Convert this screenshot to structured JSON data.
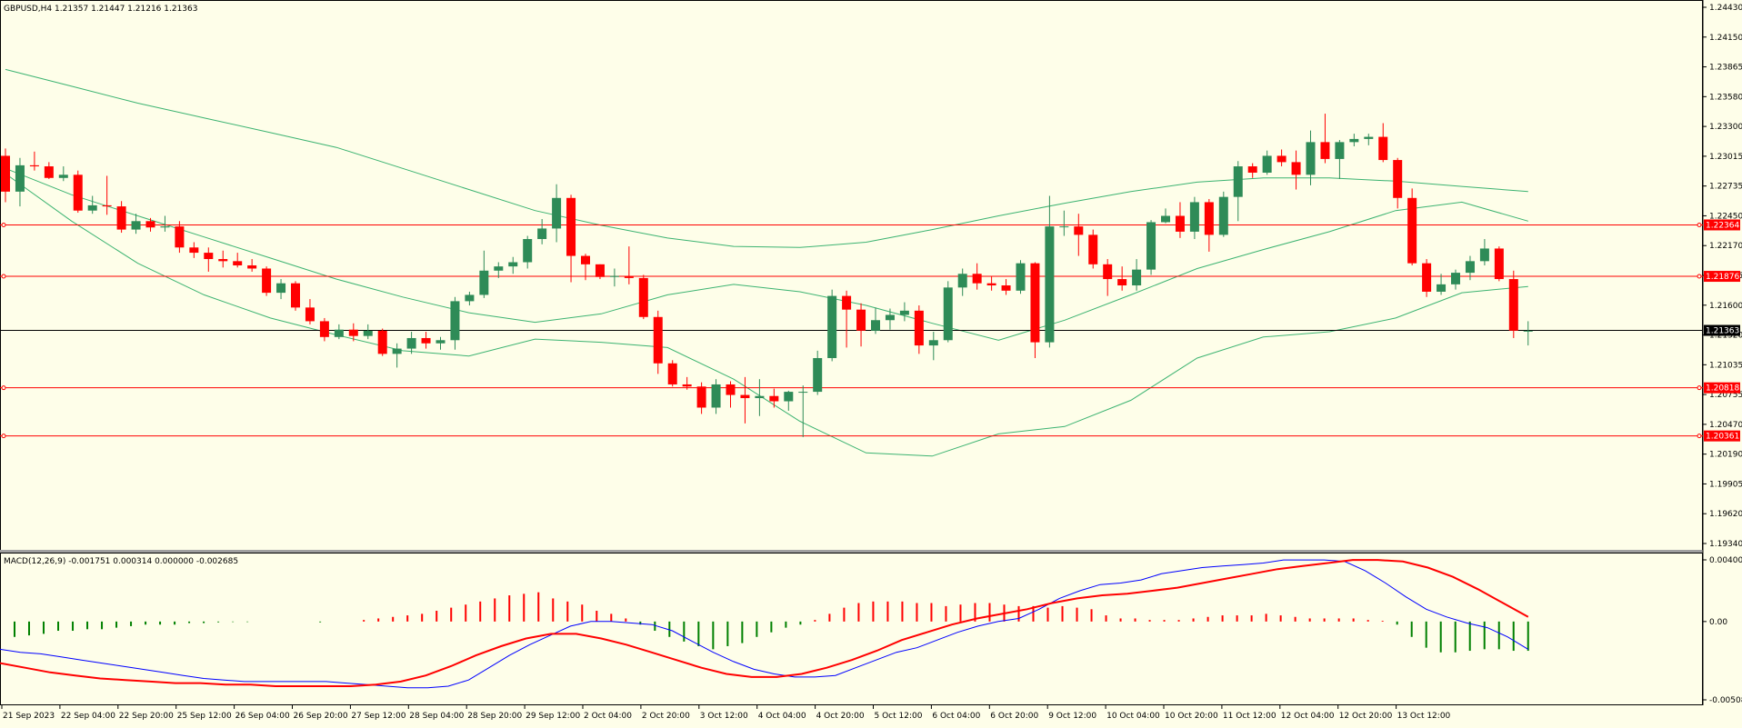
{
  "price_panel": {
    "header": "GBPUSD,H4  1.21357 1.21447 1.21216 1.21363",
    "price_axis_ticks": [
      "1.24430",
      "1.24150",
      "1.23865",
      "1.23580",
      "1.23300",
      "1.23015",
      "1.22735",
      "1.22450",
      "1.22170",
      "1.21885",
      "1.21600",
      "1.21320",
      "1.21035",
      "1.20755",
      "1.20470",
      "1.20190",
      "1.19905",
      "1.19620",
      "1.19340"
    ],
    "horizontal_levels": [
      {
        "price": 1.22364,
        "label": "1.22364",
        "color": "#ff0000"
      },
      {
        "price": 1.21876,
        "label": "1.21876",
        "color": "#ff0000"
      },
      {
        "price": 1.21363,
        "label": "1.21363",
        "color": "#000000"
      },
      {
        "price": 1.20818,
        "label": "1.20818",
        "color": "#ff0000"
      },
      {
        "price": 1.20361,
        "label": "1.20361",
        "color": "#ff0000"
      }
    ],
    "up_color": "#2e8b57",
    "down_color": "#ff0000",
    "band_color": "#3cb371"
  },
  "macd_panel": {
    "header": "MACD(12,26,9) -0.001751 0.000314 0.000000 -0.002685",
    "ticks": [
      "0.004004",
      "0.00",
      "-0.005084"
    ],
    "signal_color": "#ff0000",
    "main_color": "#0000ff",
    "histogram_pos_color": "#ff0000",
    "histogram_neg_color": "#008000"
  },
  "time_axis_labels": [
    "21 Sep 2023",
    "22 Sep 04:00",
    "22 Sep 20:00",
    "25 Sep 12:00",
    "26 Sep 04:00",
    "26 Sep 20:00",
    "27 Sep 12:00",
    "28 Sep 04:00",
    "28 Sep 20:00",
    "29 Sep 12:00",
    "2 Oct 04:00",
    "2 Oct 20:00",
    "3 Oct 12:00",
    "4 Oct 04:00",
    "4 Oct 20:00",
    "5 Oct 12:00",
    "6 Oct 04:00",
    "6 Oct 20:00",
    "9 Oct 12:00",
    "10 Oct 04:00",
    "10 Oct 20:00",
    "11 Oct 12:00",
    "12 Oct 04:00",
    "12 Oct 20:00",
    "13 Oct 12:00"
  ],
  "chart_data": {
    "type": "candlestick",
    "symbol": "GBPUSD",
    "timeframe": "H4",
    "ylim": [
      1.1934,
      1.2443
    ],
    "candles": [
      [
        1.2302,
        1.2309,
        1.2258,
        1.2268
      ],
      [
        1.2268,
        1.23,
        1.2254,
        1.2293
      ],
      [
        1.2293,
        1.2306,
        1.2288,
        1.2292
      ],
      [
        1.2292,
        1.2296,
        1.228,
        1.2281
      ],
      [
        1.2281,
        1.2292,
        1.2278,
        1.2284
      ],
      [
        1.2284,
        1.2288,
        1.2248,
        1.225
      ],
      [
        1.225,
        1.2264,
        1.2247,
        1.2255
      ],
      [
        1.2255,
        1.2283,
        1.2246,
        1.2254
      ],
      [
        1.2254,
        1.2259,
        1.2229,
        1.2232
      ],
      [
        1.2232,
        1.2247,
        1.2228,
        1.224
      ],
      [
        1.224,
        1.2243,
        1.223,
        1.2234
      ],
      [
        1.2234,
        1.2245,
        1.223,
        1.2235
      ],
      [
        1.2235,
        1.224,
        1.221,
        1.2215
      ],
      [
        1.2215,
        1.222,
        1.2205,
        1.221
      ],
      [
        1.221,
        1.2215,
        1.2192,
        1.2204
      ],
      [
        1.2204,
        1.2212,
        1.2196,
        1.2202
      ],
      [
        1.2202,
        1.221,
        1.2196,
        1.2198
      ],
      [
        1.2198,
        1.2204,
        1.2192,
        1.2195
      ],
      [
        1.2195,
        1.2197,
        1.2169,
        1.2172
      ],
      [
        1.2172,
        1.2185,
        1.2166,
        1.2181
      ],
      [
        1.2181,
        1.2183,
        1.2155,
        1.2158
      ],
      [
        1.2158,
        1.2166,
        1.2142,
        1.2145
      ],
      [
        1.2145,
        1.2148,
        1.2126,
        1.213
      ],
      [
        1.213,
        1.2142,
        1.2128,
        1.2137
      ],
      [
        1.2137,
        1.2143,
        1.2126,
        1.2131
      ],
      [
        1.2131,
        1.2142,
        1.2128,
        1.2136
      ],
      [
        1.2136,
        1.2138,
        1.2112,
        1.2114
      ],
      [
        1.2114,
        1.2124,
        1.2101,
        1.2119
      ],
      [
        1.2119,
        1.2135,
        1.2114,
        1.2129
      ],
      [
        1.2129,
        1.2135,
        1.2119,
        1.2124
      ],
      [
        1.2124,
        1.213,
        1.2118,
        1.2127
      ],
      [
        1.2127,
        1.2168,
        1.2118,
        1.2164
      ],
      [
        1.2164,
        1.2173,
        1.216,
        1.217
      ],
      [
        1.217,
        1.2212,
        1.2167,
        1.2193
      ],
      [
        1.2193,
        1.2201,
        1.2186,
        1.2197
      ],
      [
        1.2197,
        1.2206,
        1.219,
        1.2201
      ],
      [
        1.2201,
        1.2226,
        1.2195,
        1.2223
      ],
      [
        1.2223,
        1.2242,
        1.2218,
        1.2233
      ],
      [
        1.2233,
        1.2275,
        1.222,
        1.2262
      ],
      [
        1.2262,
        1.2265,
        1.2182,
        1.2207
      ],
      [
        1.2207,
        1.2209,
        1.2184,
        1.2199
      ],
      [
        1.2199,
        1.2199,
        1.2185,
        1.2187
      ],
      [
        1.2187,
        1.2195,
        1.2178,
        1.2188
      ],
      [
        1.2188,
        1.2216,
        1.218,
        1.2186
      ],
      [
        1.2186,
        1.2189,
        1.2147,
        1.2149
      ],
      [
        1.2149,
        1.2155,
        1.2095,
        1.2105
      ],
      [
        1.2105,
        1.2108,
        1.2083,
        1.2085
      ],
      [
        1.2085,
        1.2092,
        1.208,
        1.2083
      ],
      [
        1.2083,
        1.2087,
        1.2057,
        1.2063
      ],
      [
        1.2063,
        1.209,
        1.2057,
        1.2085
      ],
      [
        1.2085,
        1.2088,
        1.2063,
        1.2075
      ],
      [
        1.2075,
        1.2092,
        1.2048,
        1.2072
      ],
      [
        1.2072,
        1.209,
        1.2055,
        1.2074
      ],
      [
        1.2074,
        1.2081,
        1.2063,
        1.2069
      ],
      [
        1.2069,
        1.2079,
        1.206,
        1.2078
      ],
      [
        1.2078,
        1.2084,
        1.2035,
        1.2078
      ],
      [
        1.2078,
        1.2117,
        1.2075,
        1.211
      ],
      [
        1.211,
        1.2175,
        1.2107,
        1.2169
      ],
      [
        1.2169,
        1.2174,
        1.212,
        1.2156
      ],
      [
        1.2156,
        1.2162,
        1.2121,
        1.2136
      ],
      [
        1.2136,
        1.2158,
        1.2133,
        1.2146
      ],
      [
        1.2146,
        1.2157,
        1.2137,
        1.2151
      ],
      [
        1.2151,
        1.2163,
        1.2145,
        1.2155
      ],
      [
        1.2155,
        1.216,
        1.2114,
        1.2122
      ],
      [
        1.2122,
        1.2135,
        1.2108,
        1.2127
      ],
      [
        1.2127,
        1.2183,
        1.2125,
        1.2177
      ],
      [
        1.2177,
        1.2195,
        1.2169,
        1.219
      ],
      [
        1.219,
        1.22,
        1.2175,
        1.2181
      ],
      [
        1.2181,
        1.2188,
        1.2174,
        1.2179
      ],
      [
        1.2179,
        1.2185,
        1.217,
        1.2174
      ],
      [
        1.2174,
        1.2203,
        1.2171,
        1.22
      ],
      [
        1.22,
        1.2201,
        1.211,
        1.2125
      ],
      [
        1.2125,
        1.2264,
        1.212,
        1.2235
      ],
      [
        1.2235,
        1.225,
        1.2226,
        1.2235
      ],
      [
        1.2235,
        1.2247,
        1.2207,
        1.2227
      ],
      [
        1.2227,
        1.2232,
        1.2195,
        1.2199
      ],
      [
        1.2199,
        1.2204,
        1.2169,
        1.2185
      ],
      [
        1.2185,
        1.2197,
        1.2174,
        1.2179
      ],
      [
        1.2179,
        1.2204,
        1.2174,
        1.2194
      ],
      [
        1.2194,
        1.2241,
        1.2189,
        1.2239
      ],
      [
        1.2239,
        1.2252,
        1.2238,
        1.2245
      ],
      [
        1.2245,
        1.2258,
        1.2224,
        1.223
      ],
      [
        1.223,
        1.2263,
        1.2223,
        1.2258
      ],
      [
        1.2258,
        1.2261,
        1.2211,
        1.2227
      ],
      [
        1.2227,
        1.2268,
        1.2225,
        1.2263
      ],
      [
        1.2263,
        1.2297,
        1.224,
        1.2292
      ],
      [
        1.2292,
        1.2295,
        1.2281,
        1.2286
      ],
      [
        1.2286,
        1.2307,
        1.2284,
        1.2302
      ],
      [
        1.2302,
        1.2308,
        1.2292,
        1.2296
      ],
      [
        1.2296,
        1.2307,
        1.227,
        1.2284
      ],
      [
        1.2284,
        1.2326,
        1.2274,
        1.2315
      ],
      [
        1.2315,
        1.2342,
        1.2295,
        1.2299
      ],
      [
        1.2299,
        1.2317,
        1.228,
        1.2315
      ],
      [
        1.2315,
        1.2323,
        1.2311,
        1.2318
      ],
      [
        1.2318,
        1.2323,
        1.2312,
        1.232
      ],
      [
        1.232,
        1.2333,
        1.2296,
        1.2298
      ],
      [
        1.2298,
        1.23,
        1.2252,
        1.2262
      ],
      [
        1.2262,
        1.2271,
        1.2198,
        1.22
      ],
      [
        1.22,
        1.2204,
        1.2168,
        1.2173
      ],
      [
        1.2173,
        1.219,
        1.217,
        1.218
      ],
      [
        1.218,
        1.2194,
        1.2175,
        1.2191
      ],
      [
        1.2191,
        1.2207,
        1.2184,
        1.2202
      ],
      [
        1.2202,
        1.2223,
        1.2198,
        1.2214
      ],
      [
        1.2214,
        1.2216,
        1.2183,
        1.2185
      ],
      [
        1.2185,
        1.2193,
        1.2129,
        1.2136
      ],
      [
        1.2136,
        1.2145,
        1.2122,
        1.2136
      ]
    ],
    "bollinger_upper": [
      1.2384,
      1.2368,
      1.2352,
      1.2338,
      1.2324,
      1.231,
      1.229,
      1.227,
      1.225,
      1.2236,
      1.2224,
      1.2216,
      1.2215,
      1.222,
      1.2232,
      1.2245,
      1.2257,
      1.2268,
      1.2277,
      1.2281,
      1.2281,
      1.2278,
      1.2273,
      1.2268
    ],
    "bollinger_mid": [
      1.229,
      1.2265,
      1.2245,
      1.2225,
      1.2205,
      1.2185,
      1.2168,
      1.2153,
      1.2144,
      1.2152,
      1.217,
      1.218,
      1.2173,
      1.216,
      1.2143,
      1.2127,
      1.2146,
      1.217,
      1.2195,
      1.2213,
      1.223,
      1.225,
      1.2258,
      1.224
    ],
    "bollinger_lower": [
      1.2285,
      1.224,
      1.22,
      1.217,
      1.2148,
      1.2132,
      1.2117,
      1.2112,
      1.2128,
      1.2125,
      1.212,
      1.209,
      1.205,
      1.202,
      1.2017,
      1.2038,
      1.2045,
      1.207,
      1.211,
      1.213,
      1.2135,
      1.2148,
      1.2172,
      1.2178
    ],
    "macd_histogram": [
      -0.001,
      -0.0009,
      -0.0008,
      -0.0006,
      -0.0006,
      -0.0005,
      -0.0005,
      -0.0004,
      -0.0003,
      -0.0002,
      -0.0002,
      -0.0002,
      -0.0001,
      -0.0001,
      -5e-05,
      -3e-05,
      -3e-05,
      0.0,
      0.0,
      0.0,
      0.0,
      -5e-05,
      0.0,
      0.0,
      0.0001,
      0.0002,
      0.0003,
      0.0004,
      0.0005,
      0.0007,
      0.0009,
      0.0011,
      0.0013,
      0.0015,
      0.0017,
      0.0018,
      0.0019,
      0.0015,
      0.0013,
      0.0011,
      0.0007,
      0.0005,
      0.0002,
      -0.0002,
      -0.0006,
      -0.001,
      -0.0013,
      -0.0016,
      -0.0018,
      -0.0016,
      -0.0014,
      -0.001,
      -0.0007,
      -0.0004,
      -0.0002,
      0.0001,
      0.0005,
      0.0009,
      0.0012,
      0.0013,
      0.0013,
      0.0013,
      0.0012,
      0.0012,
      0.001,
      0.0011,
      0.0012,
      0.0012,
      0.0011,
      0.001,
      0.001,
      0.0009,
      0.001,
      0.0009,
      0.0008,
      0.0004,
      0.0002,
      0.0002,
      0.0001,
      0.0001,
      0.0001,
      0.0002,
      0.0003,
      0.0004,
      0.0004,
      0.0004,
      0.0005,
      0.0004,
      0.0003,
      0.0002,
      0.0002,
      0.0002,
      0.0002,
      0.0001,
      5e-05,
      -0.0002,
      -0.001,
      -0.0017,
      -0.002,
      -0.002,
      -0.0019,
      -0.0018,
      -0.0018,
      -0.0019,
      -0.0019
    ],
    "macd_main": [
      -0.0018,
      -0.002,
      -0.0021,
      -0.0023,
      -0.0025,
      -0.0027,
      -0.0029,
      -0.0031,
      -0.0033,
      -0.0035,
      -0.0037,
      -0.0038,
      -0.0039,
      -0.0039,
      -0.0039,
      -0.0039,
      -0.0039,
      -0.004,
      -0.0041,
      -0.0042,
      -0.0043,
      -0.0043,
      -0.0042,
      -0.0038,
      -0.003,
      -0.0022,
      -0.0015,
      -0.0009,
      -0.0003,
      0.0,
      0.0,
      -0.0001,
      -0.0002,
      -0.0006,
      -0.0013,
      -0.002,
      -0.0026,
      -0.0031,
      -0.0034,
      -0.0036,
      -0.0036,
      -0.0035,
      -0.003,
      -0.0025,
      -0.002,
      -0.0017,
      -0.0012,
      -0.0007,
      -0.0003,
      0.0,
      0.0002,
      0.0008,
      0.0015,
      0.002,
      0.0024,
      0.0025,
      0.0027,
      0.0031,
      0.0033,
      0.0035,
      0.0036,
      0.0037,
      0.0038,
      0.004,
      0.004,
      0.004,
      0.0039,
      0.0033,
      0.0025,
      0.0016,
      0.0008,
      0.0003,
      -0.0001,
      -0.0004,
      -0.001,
      -0.0018
    ],
    "macd_signal": [
      -0.0027,
      -0.003,
      -0.0033,
      -0.0035,
      -0.0037,
      -0.0038,
      -0.0039,
      -0.004,
      -0.004,
      -0.0041,
      -0.0041,
      -0.0042,
      -0.0042,
      -0.0042,
      -0.0042,
      -0.0041,
      -0.0039,
      -0.0035,
      -0.0029,
      -0.0022,
      -0.0016,
      -0.0011,
      -0.0008,
      -0.0008,
      -0.0011,
      -0.0015,
      -0.002,
      -0.0025,
      -0.003,
      -0.0034,
      -0.0036,
      -0.0036,
      -0.0034,
      -0.003,
      -0.0025,
      -0.0019,
      -0.0012,
      -0.0007,
      -0.0002,
      0.0002,
      0.0005,
      0.0008,
      0.0012,
      0.0015,
      0.0017,
      0.0018,
      0.002,
      0.0022,
      0.0025,
      0.0028,
      0.0031,
      0.0034,
      0.0036,
      0.0038,
      0.004,
      0.004,
      0.0039,
      0.0035,
      0.0029,
      0.0021,
      0.0012,
      0.0003
    ]
  }
}
